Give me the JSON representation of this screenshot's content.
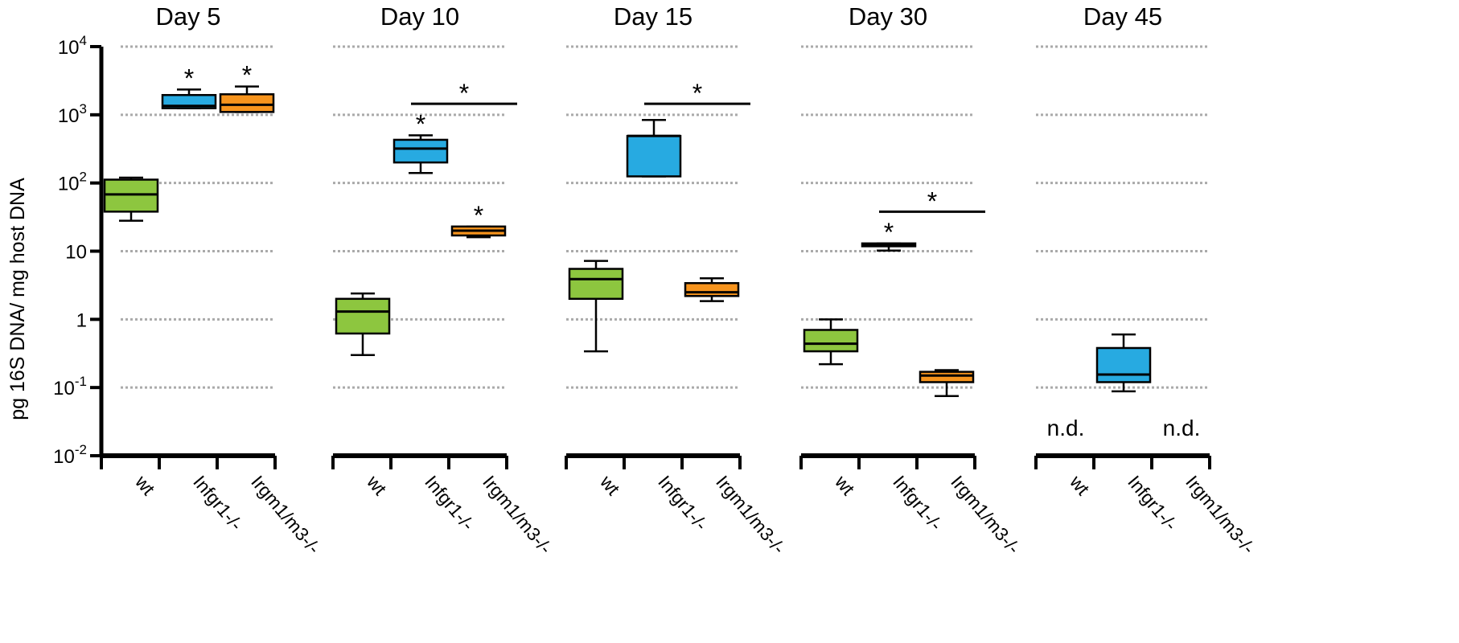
{
  "chart_data": {
    "type": "box",
    "ylabel": "pg 16S DNA/ mg host DNA",
    "yscale": "log",
    "ylim": [
      0.01,
      10000
    ],
    "grid": "horizontal dotted",
    "y_ticks": [
      {
        "value": 0.01,
        "base": "10",
        "exp": "-2"
      },
      {
        "value": 0.1,
        "base": "10",
        "exp": "-1"
      },
      {
        "value": 1,
        "base": "1",
        "exp": ""
      },
      {
        "value": 10,
        "base": "10",
        "exp": ""
      },
      {
        "value": 100,
        "base": "10",
        "exp": "2"
      },
      {
        "value": 1000,
        "base": "10",
        "exp": "3"
      },
      {
        "value": 10000,
        "base": "10",
        "exp": "4"
      }
    ],
    "groups": [
      "wt",
      "Infgr1-/-",
      "Irgm1/m3-/-"
    ],
    "colors": {
      "wt": "#8dc63f",
      "Infgr1-/-": "#27aae1",
      "Irgm1/m3-/-": "#f7941d"
    },
    "panels": [
      {
        "title": "Day 5",
        "boxes": [
          {
            "group": "wt",
            "min": 28,
            "q1": 38,
            "median": 68,
            "q3": 112,
            "max": 120
          },
          {
            "group": "Infgr1-/-",
            "min": 1250,
            "q1": 1250,
            "median": 1350,
            "q3": 1950,
            "max": 2350,
            "star": "*"
          },
          {
            "group": "Irgm1/m3-/-",
            "min": 1100,
            "q1": 1100,
            "median": 1400,
            "q3": 2000,
            "max": 2600,
            "star": "*"
          }
        ],
        "nd": [],
        "brackets": []
      },
      {
        "title": "Day 10",
        "boxes": [
          {
            "group": "wt",
            "min": 0.3,
            "q1": 0.62,
            "median": 1.3,
            "q3": 2.0,
            "max": 2.4
          },
          {
            "group": "Infgr1-/-",
            "min": 140,
            "q1": 200,
            "median": 320,
            "q3": 430,
            "max": 500,
            "star": "*"
          },
          {
            "group": "Irgm1/m3-/-",
            "min": 16,
            "q1": 17,
            "median": 20,
            "q3": 23,
            "max": 23,
            "star": "*"
          }
        ],
        "nd": [],
        "brackets": [
          {
            "from": 1,
            "to": 2,
            "y": 1450,
            "label": "*"
          }
        ]
      },
      {
        "title": "Day 15",
        "boxes": [
          {
            "group": "wt",
            "min": 0.34,
            "q1": 2.0,
            "median": 3.9,
            "q3": 5.5,
            "max": 7.2
          },
          {
            "group": "Infgr1-/-",
            "min": 125,
            "q1": 125,
            "median": 490,
            "q3": 490,
            "max": 840
          },
          {
            "group": "Irgm1/m3-/-",
            "min": 1.85,
            "q1": 2.2,
            "median": 2.5,
            "q3": 3.4,
            "max": 4.0
          }
        ],
        "nd": [],
        "brackets": [
          {
            "from": 1,
            "to": 2,
            "y": 1450,
            "label": "*"
          }
        ]
      },
      {
        "title": "Day 30",
        "boxes": [
          {
            "group": "wt",
            "min": 0.22,
            "q1": 0.34,
            "median": 0.44,
            "q3": 0.7,
            "max": 1.0
          },
          {
            "group": "Infgr1-/-",
            "min": 10.2,
            "q1": 11.8,
            "median": 12.3,
            "q3": 13,
            "max": 13,
            "star": "*"
          },
          {
            "group": "Irgm1/m3-/-",
            "min": 0.075,
            "q1": 0.12,
            "median": 0.15,
            "q3": 0.17,
            "max": 0.18
          }
        ],
        "nd": [],
        "brackets": [
          {
            "from": 1,
            "to": 2,
            "y": 38,
            "label": "*"
          }
        ]
      },
      {
        "title": "Day 45",
        "boxes": [
          {
            "group": "Infgr1-/-",
            "min": 0.088,
            "q1": 0.12,
            "median": 0.155,
            "q3": 0.38,
            "max": 0.6
          }
        ],
        "nd": [
          {
            "group": "wt",
            "label": "n.d."
          },
          {
            "group": "Irgm1/m3-/-",
            "label": "n.d."
          }
        ],
        "brackets": []
      }
    ]
  }
}
